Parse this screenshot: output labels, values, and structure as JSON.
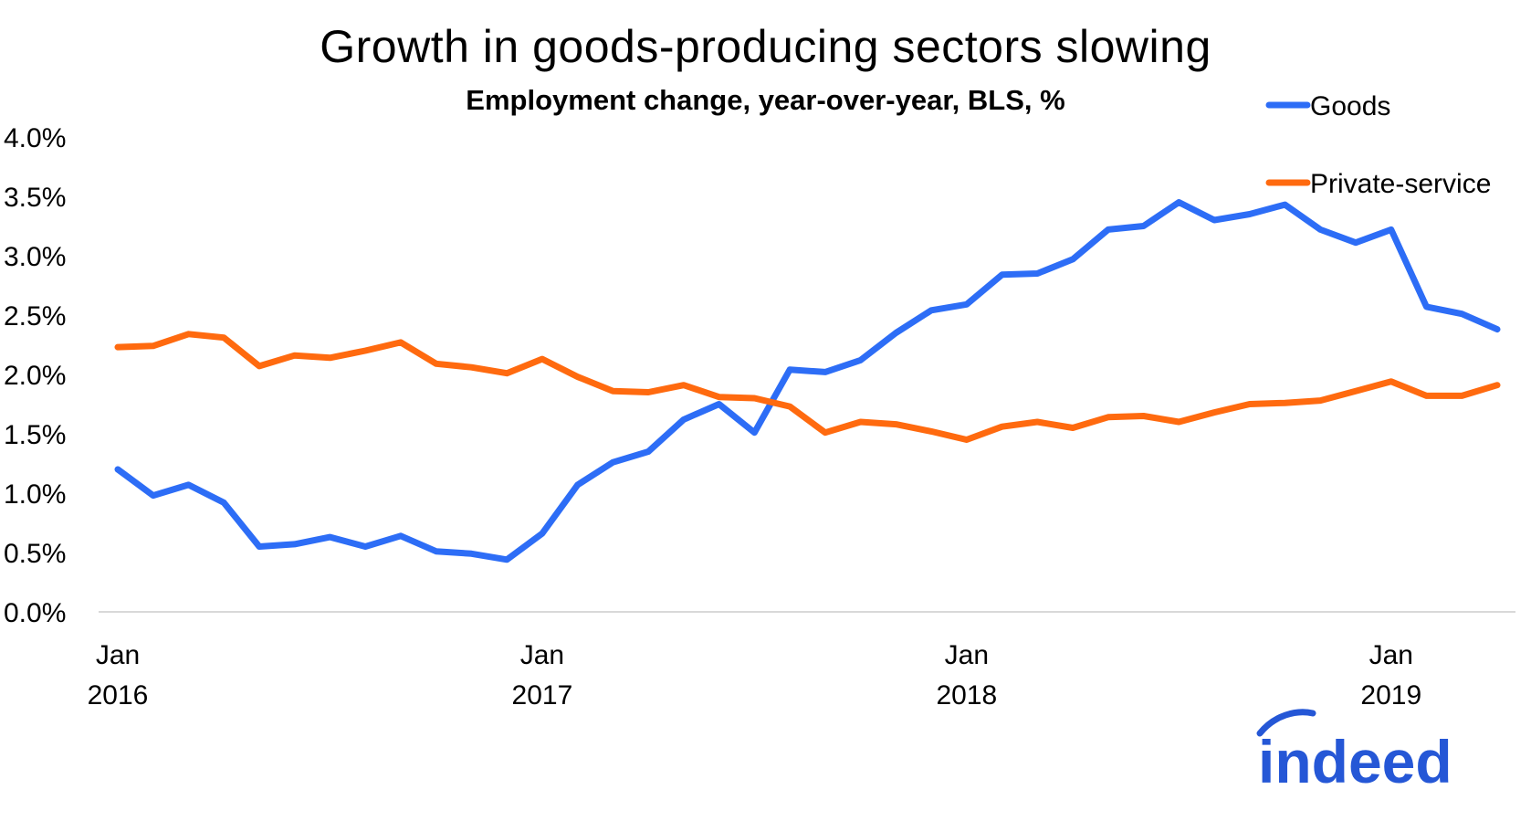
{
  "colors": {
    "goods": "#2D6DF6",
    "service": "#FF6A0F",
    "logo": "#2557D6",
    "axis": "#D9D9D9"
  },
  "chart_data": {
    "type": "line",
    "title": "Growth in goods-producing sectors slowing",
    "subtitle": "Employment change, year-over-year, BLS, %",
    "ylim": [
      0,
      4.0
    ],
    "y_ticks": [
      "0.0%",
      "0.5%",
      "1.0%",
      "1.5%",
      "2.0%",
      "2.5%",
      "3.0%",
      "3.5%",
      "4.0%"
    ],
    "x_ticks": [
      {
        "index": 0,
        "month": "Jan",
        "year": "2016"
      },
      {
        "index": 12,
        "month": "Jan",
        "year": "2017"
      },
      {
        "index": 24,
        "month": "Jan",
        "year": "2018"
      },
      {
        "index": 36,
        "month": "Jan",
        "year": "2019"
      }
    ],
    "x": [
      "2016-01",
      "2016-02",
      "2016-03",
      "2016-04",
      "2016-05",
      "2016-06",
      "2016-07",
      "2016-08",
      "2016-09",
      "2016-10",
      "2016-11",
      "2016-12",
      "2017-01",
      "2017-02",
      "2017-03",
      "2017-04",
      "2017-05",
      "2017-06",
      "2017-07",
      "2017-08",
      "2017-09",
      "2017-10",
      "2017-11",
      "2017-12",
      "2018-01",
      "2018-02",
      "2018-03",
      "2018-04",
      "2018-05",
      "2018-06",
      "2018-07",
      "2018-08",
      "2018-09",
      "2018-10",
      "2018-11",
      "2018-12",
      "2019-01",
      "2019-02",
      "2019-03",
      "2019-04"
    ],
    "series": [
      {
        "name": "Goods",
        "values": [
          1.2,
          0.98,
          1.07,
          0.92,
          0.55,
          0.57,
          0.63,
          0.55,
          0.64,
          0.51,
          0.49,
          0.44,
          0.66,
          1.07,
          1.26,
          1.35,
          1.62,
          1.75,
          1.51,
          2.04,
          2.02,
          2.12,
          2.35,
          2.54,
          2.59,
          2.84,
          2.85,
          2.97,
          3.22,
          3.25,
          3.45,
          3.3,
          3.35,
          3.43,
          3.22,
          3.11,
          3.22,
          2.57,
          2.51,
          2.38
        ]
      },
      {
        "name": "Private-service",
        "values": [
          2.23,
          2.24,
          2.34,
          2.31,
          2.07,
          2.16,
          2.14,
          2.2,
          2.27,
          2.09,
          2.06,
          2.01,
          2.13,
          1.98,
          1.86,
          1.85,
          1.91,
          1.81,
          1.8,
          1.73,
          1.51,
          1.6,
          1.58,
          1.52,
          1.45,
          1.56,
          1.6,
          1.55,
          1.64,
          1.65,
          1.6,
          1.68,
          1.75,
          1.76,
          1.78,
          1.86,
          1.94,
          1.82,
          1.82,
          1.91
        ]
      }
    ],
    "legend": {
      "position": "top-right"
    },
    "grid": false
  },
  "logo": {
    "text": "indeed"
  }
}
